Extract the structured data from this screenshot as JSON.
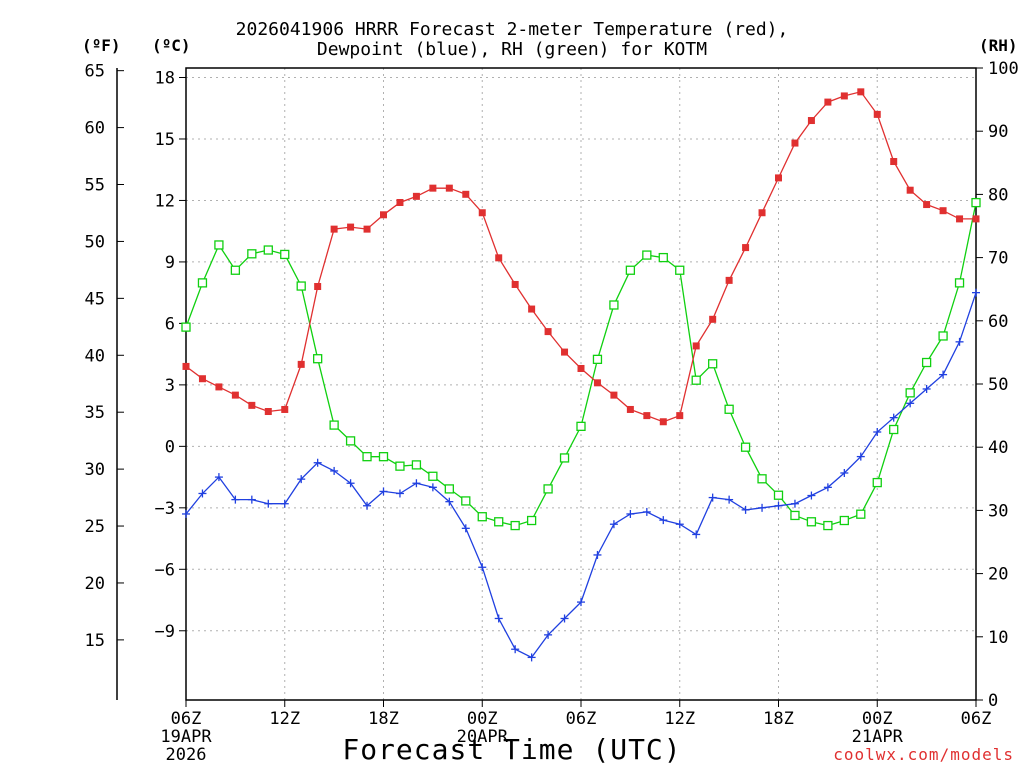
{
  "header": {
    "title_line1": "2026041906 HRRR Forecast 2-meter Temperature (red),",
    "title_line2": "Dewpoint (blue), RH (green) for KOTM"
  },
  "units": {
    "f": "(ºF)",
    "c": "(ºC)",
    "rh": "(RH)"
  },
  "footer": {
    "x_title": "Forecast Time (UTC)",
    "credit": "coolwx.com/models"
  },
  "colors": {
    "temperature": "#e03030",
    "dewpoint": "#2040e0",
    "rh": "#10d010",
    "grid": "#b0b0b0"
  },
  "chart_data": {
    "type": "line",
    "x_unit": "forecast hour (from 06Z 19APR 2026)",
    "x_range": [
      0,
      48
    ],
    "x_ticks": [
      {
        "hour": 0,
        "label": "06Z",
        "sub": [
          "19APR",
          "2026"
        ]
      },
      {
        "hour": 6,
        "label": "12Z",
        "sub": []
      },
      {
        "hour": 12,
        "label": "18Z",
        "sub": []
      },
      {
        "hour": 18,
        "label": "00Z",
        "sub": [
          "20APR"
        ]
      },
      {
        "hour": 24,
        "label": "06Z",
        "sub": []
      },
      {
        "hour": 30,
        "label": "12Z",
        "sub": []
      },
      {
        "hour": 36,
        "label": "18Z",
        "sub": []
      },
      {
        "hour": 42,
        "label": "00Z",
        "sub": [
          "21APR"
        ]
      },
      {
        "hour": 48,
        "label": "06Z",
        "sub": []
      }
    ],
    "y_celsius": {
      "range": [
        -11.3,
        18.3
      ],
      "ticks": [
        18,
        15,
        12,
        9,
        6,
        3,
        0,
        -3,
        -6,
        -9
      ],
      "tick_labels": [
        "18",
        "15",
        "12",
        "9",
        "6",
        "3",
        "0",
        "−3",
        "−6",
        "−9"
      ]
    },
    "y_fahrenheit": {
      "ticks": [
        65,
        60,
        55,
        50,
        45,
        40,
        35,
        30,
        25,
        20,
        15
      ]
    },
    "y_rh": {
      "range": [
        0,
        100
      ],
      "ticks": [
        100,
        90,
        80,
        70,
        60,
        50,
        40,
        30,
        20,
        10,
        0
      ]
    },
    "series": [
      {
        "name": "2-meter Temperature",
        "axis": "celsius",
        "color": "#e03030",
        "marker": "filled-square",
        "values": [
          3.9,
          3.3,
          2.9,
          2.5,
          2.0,
          1.7,
          1.8,
          4.0,
          7.8,
          10.6,
          10.7,
          10.6,
          11.3,
          11.9,
          12.2,
          12.6,
          12.6,
          12.3,
          11.4,
          9.2,
          7.9,
          6.7,
          5.6,
          4.6,
          3.8,
          3.1,
          2.5,
          1.8,
          1.5,
          1.2,
          1.5,
          4.9,
          6.2,
          8.1,
          9.7,
          11.4,
          13.1,
          14.8,
          15.9,
          16.8,
          17.1,
          17.3,
          16.2,
          13.9,
          12.5,
          11.8,
          11.5,
          11.1,
          11.1
        ]
      },
      {
        "name": "Dewpoint",
        "axis": "celsius",
        "color": "#2040e0",
        "marker": "plus",
        "values": [
          -3.3,
          -2.3,
          -1.5,
          -2.6,
          -2.6,
          -2.8,
          -2.8,
          -1.6,
          -0.8,
          -1.2,
          -1.8,
          -2.9,
          -2.2,
          -2.3,
          -1.8,
          -2.0,
          -2.7,
          -4.0,
          -5.9,
          -8.4,
          -9.9,
          -10.3,
          -9.2,
          -8.4,
          -7.6,
          -5.3,
          -3.8,
          -3.3,
          -3.2,
          -3.6,
          -3.8,
          -4.3,
          -2.5,
          -2.6,
          -3.1,
          -3.0,
          -2.9,
          -2.8,
          -2.4,
          -2.0,
          -1.3,
          -0.5,
          0.7,
          1.4,
          2.1,
          2.8,
          3.5,
          5.1,
          7.5
        ]
      },
      {
        "name": "Relative Humidity",
        "axis": "rh",
        "color": "#10d010",
        "marker": "open-square",
        "values": [
          59,
          66,
          72,
          68,
          70.6,
          71.2,
          70.5,
          65.5,
          54,
          43.5,
          41,
          38.5,
          38.5,
          37,
          37.2,
          35.4,
          33.4,
          31.5,
          29,
          28.2,
          27.6,
          28.4,
          33.4,
          38.3,
          43.3,
          53.9,
          62.5,
          68,
          70.4,
          70,
          68,
          50.6,
          53.2,
          46,
          40,
          35,
          32.4,
          29.2,
          28.2,
          27.6,
          28.4,
          29.4,
          34.4,
          42.8,
          48.6,
          53.4,
          57.6,
          66,
          78.7
        ]
      }
    ]
  }
}
